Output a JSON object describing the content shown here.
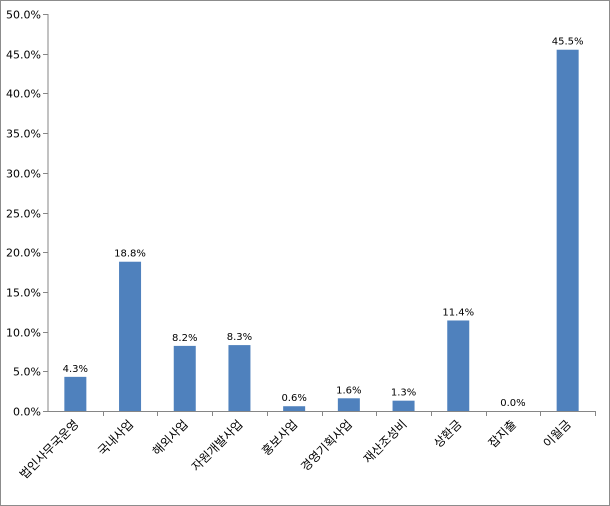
{
  "chart_data": {
    "type": "bar",
    "title": "",
    "xlabel": "",
    "ylabel": "",
    "categories": [
      "법인사무국운영",
      "국내사업",
      "해외사업",
      "자원개발사업",
      "홍보사업",
      "경영기획사업",
      "재산조성비",
      "상환금",
      "잡지출",
      "이월금"
    ],
    "values": [
      4.3,
      18.8,
      8.2,
      8.3,
      0.6,
      1.6,
      1.3,
      11.4,
      0.0,
      45.5
    ],
    "data_labels": [
      "4.3%",
      "18.8%",
      "8.2%",
      "8.3%",
      "0.6%",
      "1.6%",
      "1.3%",
      "11.4%",
      "0.0%",
      "45.5%"
    ],
    "ylim": [
      0,
      50
    ],
    "yticks": [
      0,
      5,
      10,
      15,
      20,
      25,
      30,
      35,
      40,
      45,
      50
    ],
    "ytick_labels": [
      "0.0%",
      "5.0%",
      "10.0%",
      "15.0%",
      "20.0%",
      "25.0%",
      "30.0%",
      "35.0%",
      "40.0%",
      "45.0%",
      "50.0%"
    ],
    "grid": false,
    "legend": "none",
    "bar_color": "#4f81bd"
  }
}
